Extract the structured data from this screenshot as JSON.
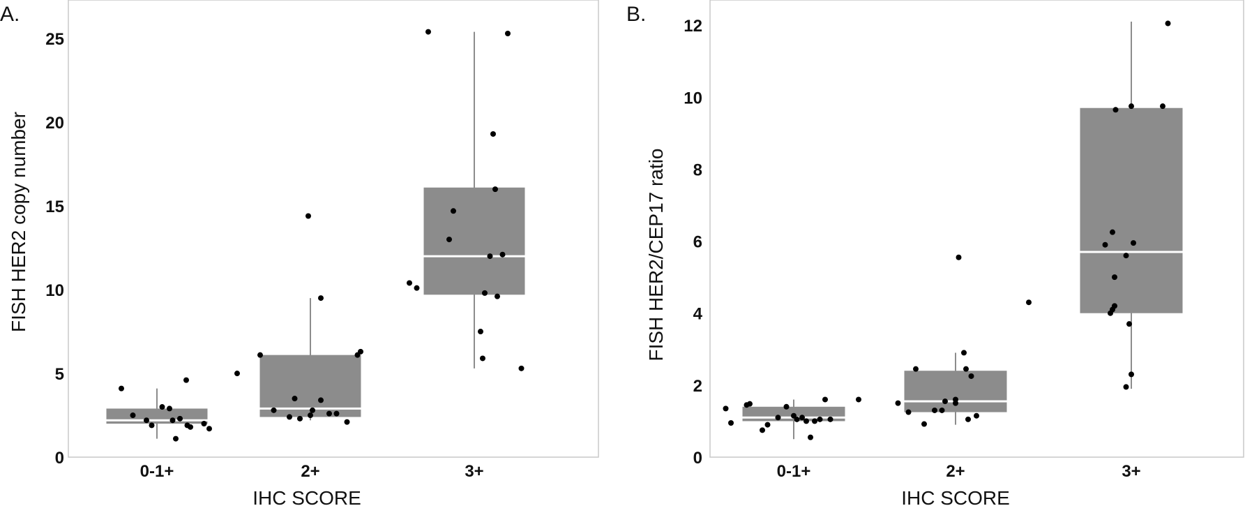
{
  "chart_data": [
    {
      "type": "box",
      "panel_label": "A.",
      "xlabel": "IHC SCORE",
      "ylabel": "FISH HER2 copy number",
      "ylim": [
        0,
        27.3
      ],
      "yticks": [
        0,
        5,
        10,
        15,
        20,
        25
      ],
      "categories": [
        "0-1+",
        "2+",
        "3+"
      ],
      "grid": false,
      "boxes": [
        {
          "category": "0-1+",
          "whisker_low": 1.1,
          "q1": 2.0,
          "median": 2.2,
          "q3": 2.9,
          "whisker_high": 4.1
        },
        {
          "category": "2+",
          "whisker_low": 2.2,
          "q1": 2.4,
          "median": 2.9,
          "q3": 6.1,
          "whisker_high": 9.5
        },
        {
          "category": "3+",
          "whisker_low": 5.3,
          "q1": 9.7,
          "median": 12.0,
          "q3": 16.1,
          "whisker_high": 25.4
        }
      ],
      "points": [
        {
          "category": "0-1+",
          "jitter": -0.23,
          "y": 2.5
        },
        {
          "category": "0-1+",
          "jitter": -0.1,
          "y": 2.2
        },
        {
          "category": "0-1+",
          "jitter": -0.05,
          "y": 1.9
        },
        {
          "category": "0-1+",
          "jitter": 0.05,
          "y": 3.0
        },
        {
          "category": "0-1+",
          "jitter": 0.12,
          "y": 2.9
        },
        {
          "category": "0-1+",
          "jitter": 0.15,
          "y": 2.2
        },
        {
          "category": "0-1+",
          "jitter": 0.22,
          "y": 2.3
        },
        {
          "category": "0-1+",
          "jitter": 0.29,
          "y": 1.9
        },
        {
          "category": "0-1+",
          "jitter": 0.45,
          "y": 2.0
        },
        {
          "category": "0-1+",
          "jitter": 0.32,
          "y": 1.8
        },
        {
          "category": "0-1+",
          "jitter": 0.5,
          "y": 1.7
        },
        {
          "category": "0-1+",
          "jitter": -0.34,
          "y": 4.1
        },
        {
          "category": "0-1+",
          "jitter": 0.28,
          "y": 4.6
        },
        {
          "category": "0-1+",
          "jitter": 0.18,
          "y": 1.1
        },
        {
          "category": "2+",
          "jitter": -0.7,
          "y": 5.0
        },
        {
          "category": "2+",
          "jitter": -0.48,
          "y": 6.1
        },
        {
          "category": "2+",
          "jitter": -0.35,
          "y": 2.8
        },
        {
          "category": "2+",
          "jitter": -0.2,
          "y": 2.4
        },
        {
          "category": "2+",
          "jitter": -0.1,
          "y": 2.3
        },
        {
          "category": "2+",
          "jitter": -0.15,
          "y": 3.5
        },
        {
          "category": "2+",
          "jitter": 0.0,
          "y": 2.5
        },
        {
          "category": "2+",
          "jitter": 0.02,
          "y": 2.8
        },
        {
          "category": "2+",
          "jitter": 0.1,
          "y": 3.4
        },
        {
          "category": "2+",
          "jitter": 0.18,
          "y": 2.6
        },
        {
          "category": "2+",
          "jitter": 0.25,
          "y": 2.6
        },
        {
          "category": "2+",
          "jitter": 0.35,
          "y": 2.1
        },
        {
          "category": "2+",
          "jitter": 0.45,
          "y": 6.1
        },
        {
          "category": "2+",
          "jitter": 0.48,
          "y": 6.3
        },
        {
          "category": "2+",
          "jitter": -0.02,
          "y": 14.4
        },
        {
          "category": "2+",
          "jitter": 0.1,
          "y": 9.5
        },
        {
          "category": "3+",
          "jitter": -0.44,
          "y": 25.4
        },
        {
          "category": "3+",
          "jitter": 0.32,
          "y": 25.3
        },
        {
          "category": "3+",
          "jitter": 0.18,
          "y": 19.3
        },
        {
          "category": "3+",
          "jitter": 0.2,
          "y": 16.0
        },
        {
          "category": "3+",
          "jitter": -0.2,
          "y": 14.7
        },
        {
          "category": "3+",
          "jitter": -0.24,
          "y": 13.0
        },
        {
          "category": "3+",
          "jitter": 0.15,
          "y": 12.0
        },
        {
          "category": "3+",
          "jitter": 0.27,
          "y": 12.1
        },
        {
          "category": "3+",
          "jitter": -0.62,
          "y": 10.4
        },
        {
          "category": "3+",
          "jitter": -0.55,
          "y": 10.1
        },
        {
          "category": "3+",
          "jitter": 0.1,
          "y": 9.8
        },
        {
          "category": "3+",
          "jitter": 0.22,
          "y": 9.6
        },
        {
          "category": "3+",
          "jitter": 0.06,
          "y": 7.5
        },
        {
          "category": "3+",
          "jitter": 0.08,
          "y": 5.9
        },
        {
          "category": "3+",
          "jitter": 0.45,
          "y": 5.3
        }
      ]
    },
    {
      "type": "box",
      "panel_label": "B.",
      "xlabel": "IHC SCORE",
      "ylabel": "FISH HER2/CEP17 ratio",
      "ylim": [
        0,
        12.7
      ],
      "yticks": [
        0,
        2,
        4,
        6,
        8,
        10,
        12
      ],
      "categories": [
        "0-1+",
        "2+",
        "3+"
      ],
      "grid": false,
      "boxes": [
        {
          "category": "0-1+",
          "whisker_low": 0.5,
          "q1": 1.0,
          "median": 1.1,
          "q3": 1.4,
          "whisker_high": 1.6
        },
        {
          "category": "2+",
          "whisker_low": 0.9,
          "q1": 1.25,
          "median": 1.55,
          "q3": 2.4,
          "whisker_high": 2.9
        },
        {
          "category": "3+",
          "whisker_low": 1.9,
          "q1": 4.0,
          "median": 5.7,
          "q3": 9.7,
          "whisker_high": 12.1
        }
      ],
      "points": [
        {
          "category": "0-1+",
          "jitter": -0.65,
          "y": 1.35
        },
        {
          "category": "0-1+",
          "jitter": -0.6,
          "y": 0.95
        },
        {
          "category": "0-1+",
          "jitter": -0.45,
          "y": 1.45
        },
        {
          "category": "0-1+",
          "jitter": -0.42,
          "y": 1.48
        },
        {
          "category": "0-1+",
          "jitter": -0.3,
          "y": 0.75
        },
        {
          "category": "0-1+",
          "jitter": -0.25,
          "y": 0.9
        },
        {
          "category": "0-1+",
          "jitter": -0.15,
          "y": 1.1
        },
        {
          "category": "0-1+",
          "jitter": -0.07,
          "y": 1.4
        },
        {
          "category": "0-1+",
          "jitter": 0.0,
          "y": 1.15
        },
        {
          "category": "0-1+",
          "jitter": 0.03,
          "y": 1.05
        },
        {
          "category": "0-1+",
          "jitter": 0.08,
          "y": 1.1
        },
        {
          "category": "0-1+",
          "jitter": 0.12,
          "y": 1.0
        },
        {
          "category": "0-1+",
          "jitter": 0.16,
          "y": 0.55
        },
        {
          "category": "0-1+",
          "jitter": 0.2,
          "y": 1.0
        },
        {
          "category": "0-1+",
          "jitter": 0.25,
          "y": 1.05
        },
        {
          "category": "0-1+",
          "jitter": 0.3,
          "y": 1.6
        },
        {
          "category": "0-1+",
          "jitter": 0.35,
          "y": 1.05
        },
        {
          "category": "0-1+",
          "jitter": 0.62,
          "y": 1.6
        },
        {
          "category": "2+",
          "jitter": -0.55,
          "y": 1.5
        },
        {
          "category": "2+",
          "jitter": -0.45,
          "y": 1.25
        },
        {
          "category": "2+",
          "jitter": -0.38,
          "y": 2.45
        },
        {
          "category": "2+",
          "jitter": -0.3,
          "y": 0.92
        },
        {
          "category": "2+",
          "jitter": -0.2,
          "y": 1.3
        },
        {
          "category": "2+",
          "jitter": -0.13,
          "y": 1.3
        },
        {
          "category": "2+",
          "jitter": -0.1,
          "y": 1.55
        },
        {
          "category": "2+",
          "jitter": 0.0,
          "y": 1.5
        },
        {
          "category": "2+",
          "jitter": 0.0,
          "y": 1.6
        },
        {
          "category": "2+",
          "jitter": 0.03,
          "y": 5.55
        },
        {
          "category": "2+",
          "jitter": 0.08,
          "y": 2.9
        },
        {
          "category": "2+",
          "jitter": 0.1,
          "y": 2.45
        },
        {
          "category": "2+",
          "jitter": 0.12,
          "y": 1.05
        },
        {
          "category": "2+",
          "jitter": 0.15,
          "y": 2.25
        },
        {
          "category": "2+",
          "jitter": 0.2,
          "y": 1.15
        },
        {
          "category": "2+",
          "jitter": 0.7,
          "y": 4.3
        },
        {
          "category": "3+",
          "jitter": -0.25,
          "y": 5.9
        },
        {
          "category": "3+",
          "jitter": -0.18,
          "y": 6.25
        },
        {
          "category": "3+",
          "jitter": -0.16,
          "y": 5.0
        },
        {
          "category": "3+",
          "jitter": -0.16,
          "y": 4.2
        },
        {
          "category": "3+",
          "jitter": -0.18,
          "y": 4.1
        },
        {
          "category": "3+",
          "jitter": -0.2,
          "y": 4.0
        },
        {
          "category": "3+",
          "jitter": -0.15,
          "y": 9.65
        },
        {
          "category": "3+",
          "jitter": 0.0,
          "y": 9.75
        },
        {
          "category": "3+",
          "jitter": -0.05,
          "y": 5.6
        },
        {
          "category": "3+",
          "jitter": 0.02,
          "y": 5.95
        },
        {
          "category": "3+",
          "jitter": -0.02,
          "y": 3.7
        },
        {
          "category": "3+",
          "jitter": 0.0,
          "y": 2.3
        },
        {
          "category": "3+",
          "jitter": -0.05,
          "y": 1.95
        },
        {
          "category": "3+",
          "jitter": 0.3,
          "y": 9.75
        },
        {
          "category": "3+",
          "jitter": 0.35,
          "y": 12.05
        }
      ]
    }
  ]
}
